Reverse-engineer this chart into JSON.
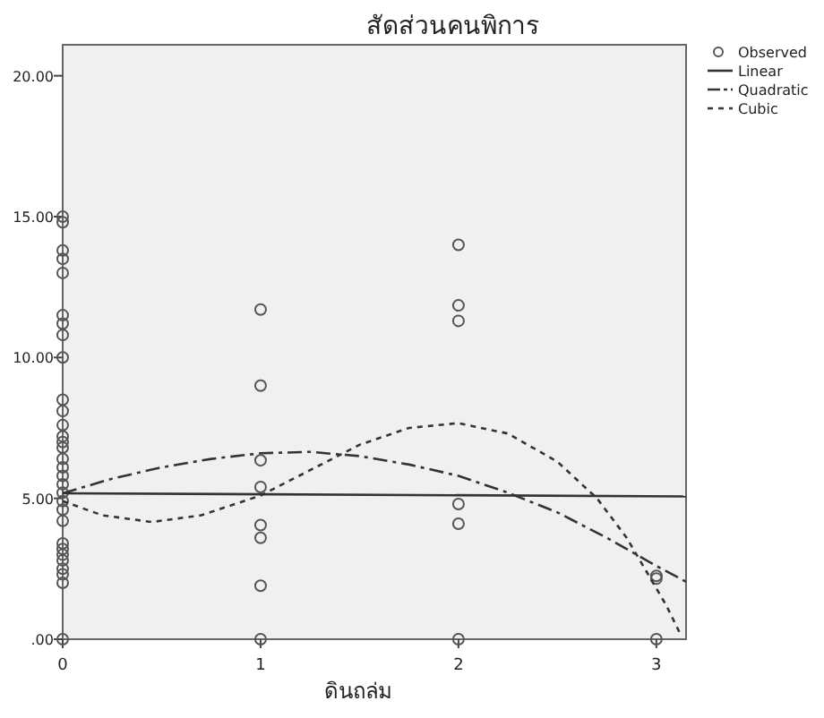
{
  "chart_data": {
    "type": "scatter",
    "title": "สัดส่วนคนพิการ",
    "xlabel": "ดินถล่ม",
    "xlim": [
      0,
      3.15
    ],
    "ylim": [
      0,
      21.1
    ],
    "xticks": [
      0,
      1,
      2,
      3
    ],
    "yticks": [
      {
        "value": 0,
        "label": ".00"
      },
      {
        "value": 5,
        "label": "5.00"
      },
      {
        "value": 10,
        "label": "10.00"
      },
      {
        "value": 15,
        "label": "15.00"
      },
      {
        "value": 20,
        "label": "20.00"
      }
    ],
    "legend": "top right",
    "grid": false,
    "series": [
      {
        "name": "Observed",
        "marker": "circle",
        "color": "#555555",
        "x": [
          0,
          0,
          0,
          0,
          0,
          0,
          0,
          0,
          0,
          0,
          0,
          0,
          0,
          0,
          0,
          0,
          0,
          0,
          0,
          0,
          0,
          0,
          0,
          0,
          0,
          0,
          0,
          0,
          0,
          0,
          0,
          1,
          1,
          1,
          1,
          1,
          1,
          1,
          1,
          2,
          2,
          2,
          2,
          2,
          2,
          3,
          3,
          3
        ],
        "values": [
          15.0,
          14.8,
          13.8,
          13.5,
          13.0,
          11.5,
          11.2,
          10.8,
          10.0,
          8.5,
          8.1,
          7.6,
          7.2,
          7.0,
          6.8,
          6.4,
          6.1,
          5.8,
          5.5,
          5.2,
          4.9,
          4.6,
          4.2,
          3.4,
          3.2,
          3.0,
          2.8,
          2.5,
          2.3,
          2.0,
          0,
          11.7,
          9.0,
          6.35,
          5.4,
          4.05,
          3.6,
          1.9,
          0,
          14.0,
          11.85,
          11.3,
          4.8,
          4.1,
          0,
          2.25,
          2.15,
          0
        ]
      },
      {
        "name": "Linear",
        "type": "line",
        "line_style": "solid",
        "color": "#333333",
        "x": [
          0,
          3.15
        ],
        "values": [
          5.18,
          5.07
        ]
      },
      {
        "name": "Quadratic",
        "type": "line",
        "line_style": "dashed",
        "color": "#333333",
        "x": [
          0,
          0.25,
          0.5,
          0.75,
          1.0,
          1.25,
          1.5,
          1.75,
          2.0,
          2.25,
          2.5,
          2.75,
          3.0,
          3.15
        ],
        "values": [
          5.18,
          5.7,
          6.1,
          6.4,
          6.6,
          6.65,
          6.5,
          6.2,
          5.8,
          5.2,
          4.5,
          3.6,
          2.6,
          2.04
        ]
      },
      {
        "name": "Cubic",
        "type": "line",
        "line_style": "dotted",
        "color": "#333333",
        "x": [
          0,
          0.2,
          0.45,
          0.7,
          1.0,
          1.25,
          1.5,
          1.75,
          2.0,
          2.25,
          2.5,
          2.7,
          2.85,
          2.95,
          3.05,
          3.12
        ],
        "values": [
          4.9,
          4.4,
          4.16,
          4.4,
          5.1,
          6.0,
          6.9,
          7.5,
          7.67,
          7.3,
          6.3,
          5.0,
          3.6,
          2.4,
          1.2,
          0.2
        ]
      }
    ]
  }
}
